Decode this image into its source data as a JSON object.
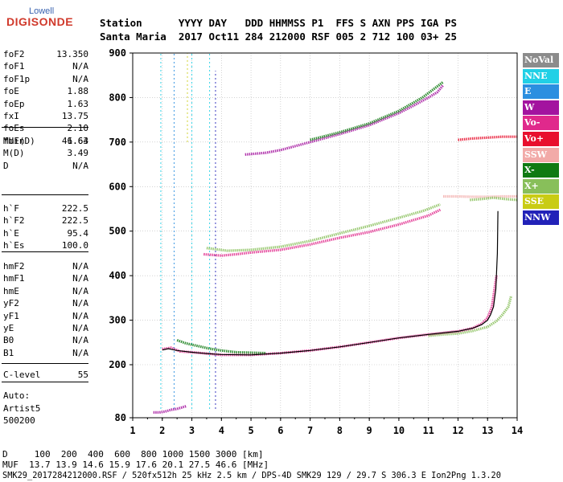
{
  "logo": {
    "top": "Lowell",
    "bottom": "DIGISONDE"
  },
  "header": {
    "line1": "Station      YYYY DAY   DDD HHMMSS P1  FFS S AXN PPS IGA PS",
    "line2": "Santa Maria  2017 Oct11 284 212000 RSF 005 2 712 100 03+ 25"
  },
  "params": {
    "group1": [
      {
        "k": "foF2",
        "v": "13.350"
      },
      {
        "k": "foF1",
        "v": "N/A"
      },
      {
        "k": "foF1p",
        "v": "N/A"
      },
      {
        "k": "foE",
        "v": "1.88"
      },
      {
        "k": "foEp",
        "v": "1.63"
      },
      {
        "k": "fxI",
        "v": "13.75"
      },
      {
        "k": "foEs",
        "v": "2.10"
      },
      {
        "k": "fmin",
        "v": "1.63"
      }
    ],
    "group2": [
      {
        "k": "MUF(D)",
        "v": "46.64"
      },
      {
        "k": "M(D)",
        "v": "3.49"
      },
      {
        "k": "D",
        "v": "N/A"
      }
    ],
    "group3": [
      {
        "k": "h`F",
        "v": "222.5"
      },
      {
        "k": "h`F2",
        "v": "222.5"
      },
      {
        "k": "h`E",
        "v": "95.4"
      },
      {
        "k": "h`Es",
        "v": "100.0"
      }
    ],
    "group4": [
      {
        "k": "hmF2",
        "v": "N/A"
      },
      {
        "k": "hmF1",
        "v": "N/A"
      },
      {
        "k": "hmE",
        "v": "N/A"
      },
      {
        "k": "yF2",
        "v": "N/A"
      },
      {
        "k": "yF1",
        "v": "N/A"
      },
      {
        "k": "yE",
        "v": "N/A"
      },
      {
        "k": "B0",
        "v": "N/A"
      },
      {
        "k": "B1",
        "v": "N/A"
      }
    ],
    "clevel": {
      "k": "C-level",
      "v": "55"
    },
    "auto": [
      "Auto:",
      "Artist5",
      "500200"
    ]
  },
  "legend": [
    {
      "label": "NoVal",
      "color": "#8c8c8c"
    },
    {
      "label": "NNE",
      "color": "#21d0e6"
    },
    {
      "label": "E",
      "color": "#2b8fe0"
    },
    {
      "label": "W",
      "color": "#a3139f"
    },
    {
      "label": "Vo-",
      "color": "#e0298c"
    },
    {
      "label": "Vo+",
      "color": "#e8102e"
    },
    {
      "label": "SSW",
      "color": "#f2aaa8"
    },
    {
      "label": "X-",
      "color": "#0f7a12"
    },
    {
      "label": "X+",
      "color": "#88bf5a"
    },
    {
      "label": "SSE",
      "color": "#c9cc14"
    },
    {
      "label": "NNW",
      "color": "#2222b8"
    }
  ],
  "footer": {
    "line1": "D     100  200  400  600  800 1000 1500 3000 [km]",
    "line2": "MUF  13.7 13.9 14.6 15.9 17.6 20.1 27.5 46.6 [MHz]",
    "line3": "SMK29_2017284212000.RSF / 520fx512h 25 kHz 2.5 km / DPS-4D SMK29 129 / 29.7 S 306.3 E Ion2Png 1.3.20"
  },
  "chart_data": {
    "type": "scatter",
    "xlabel": "",
    "ylabel": "",
    "xlim": [
      1,
      14
    ],
    "ylim": [
      80,
      900
    ],
    "x_ticks": [
      1,
      2,
      3,
      4,
      5,
      6,
      7,
      8,
      9,
      10,
      11,
      12,
      13,
      14
    ],
    "y_ticks": [
      80,
      200,
      300,
      400,
      500,
      600,
      700,
      800,
      900
    ],
    "grid": true,
    "traces": [
      {
        "name": "o-trace 1st hop",
        "color": "#e0298c",
        "x": [
          2.0,
          2.3,
          2.6,
          3.0,
          3.5,
          4.0,
          5.0,
          6.0,
          7.0,
          8.0,
          9.0,
          10.0,
          11.0,
          12.0,
          12.5,
          12.8,
          13.0,
          13.15,
          13.3
        ],
        "y": [
          235,
          238,
          230,
          228,
          225,
          222,
          222,
          226,
          232,
          240,
          250,
          260,
          268,
          275,
          282,
          292,
          305,
          330,
          400
        ]
      },
      {
        "name": "x-trace 1st hop",
        "color": "#88bf5a",
        "x": [
          11.0,
          11.5,
          12.0,
          12.5,
          13.0,
          13.3,
          13.5,
          13.7,
          13.8
        ],
        "y": [
          265,
          268,
          270,
          276,
          285,
          298,
          312,
          330,
          355
        ]
      },
      {
        "name": "x- 1st hop near fmin",
        "color": "#0f7a12",
        "x": [
          2.5,
          2.8,
          3.2,
          3.6,
          4.0,
          4.5,
          5.0,
          5.5
        ],
        "y": [
          255,
          248,
          242,
          236,
          232,
          228,
          227,
          226
        ]
      },
      {
        "name": "2nd hop",
        "color": "#e0298c",
        "x": [
          3.4,
          4.0,
          4.5,
          5.0,
          6.0,
          7.0,
          8.0,
          9.0,
          10.0,
          10.5,
          11.0,
          11.4
        ],
        "y": [
          448,
          445,
          448,
          452,
          458,
          470,
          485,
          498,
          515,
          525,
          535,
          548
        ]
      },
      {
        "name": "2nd hop x",
        "color": "#88bf5a",
        "x": [
          3.5,
          4.2,
          5.0,
          6.0,
          7.0,
          8.0,
          9.0,
          10.0,
          10.8,
          11.4
        ],
        "y": [
          462,
          456,
          458,
          465,
          478,
          495,
          512,
          530,
          545,
          560
        ]
      },
      {
        "name": "3rd hop",
        "color": "#a3139f",
        "x": [
          4.8,
          5.5,
          6.0,
          7.0,
          8.0,
          9.0,
          10.0,
          10.5,
          11.0,
          11.3,
          11.5
        ],
        "y": [
          672,
          676,
          682,
          700,
          718,
          738,
          765,
          782,
          800,
          812,
          828
        ]
      },
      {
        "name": "3rd hop x",
        "color": "#0f7a12",
        "x": [
          7.0,
          8.0,
          9.0,
          10.0,
          10.8,
          11.5
        ],
        "y": [
          705,
          722,
          742,
          770,
          800,
          835
        ]
      },
      {
        "name": "Es / low layer",
        "color": "#a3139f",
        "x": [
          1.7,
          1.9,
          2.1,
          2.3,
          2.5,
          2.7,
          2.8
        ],
        "y": [
          92,
          92,
          94,
          98,
          100,
          104,
          106
        ]
      },
      {
        "name": "upper diffuse",
        "color": "#f2aaa8",
        "x": [
          11.5,
          12.0,
          12.5,
          13.0,
          13.5,
          14.0
        ],
        "y": [
          578,
          578,
          577,
          577,
          578,
          578
        ]
      },
      {
        "name": "upper diffuse 2",
        "color": "#e8102e",
        "x": [
          12.0,
          12.5,
          13.0,
          13.5,
          14.0
        ],
        "y": [
          705,
          708,
          710,
          712,
          712
        ]
      },
      {
        "name": "x upper diffuse",
        "color": "#88bf5a",
        "x": [
          12.4,
          12.8,
          13.2,
          13.6,
          14.0
        ],
        "y": [
          570,
          572,
          575,
          572,
          570
        ]
      }
    ],
    "verticals": [
      {
        "x": 1.95,
        "y0": 100,
        "y1": 900,
        "color": "#21d0e6"
      },
      {
        "x": 2.4,
        "y0": 100,
        "y1": 900,
        "color": "#2b8fe0"
      },
      {
        "x": 2.85,
        "y0": 700,
        "y1": 900,
        "color": "#c9cc14"
      },
      {
        "x": 3.6,
        "y0": 100,
        "y1": 900,
        "color": "#21d0e6"
      },
      {
        "x": 3.8,
        "y0": 100,
        "y1": 860,
        "color": "#2222b8"
      },
      {
        "x": 3.0,
        "y0": 100,
        "y1": 900,
        "color": "#21d0e6"
      }
    ],
    "black_curve": {
      "name": "profile",
      "color": "#000000",
      "x": [
        2.0,
        2.2,
        2.5,
        3.0,
        3.5,
        4.0,
        5.0,
        6.0,
        7.0,
        8.0,
        9.0,
        10.0,
        11.0,
        12.0,
        12.5,
        12.8,
        13.0,
        13.1,
        13.2,
        13.28,
        13.33,
        13.35
      ],
      "y": [
        233,
        236,
        232,
        228,
        225,
        223,
        222,
        226,
        232,
        240,
        250,
        260,
        268,
        275,
        282,
        290,
        300,
        312,
        330,
        370,
        450,
        545
      ]
    }
  }
}
